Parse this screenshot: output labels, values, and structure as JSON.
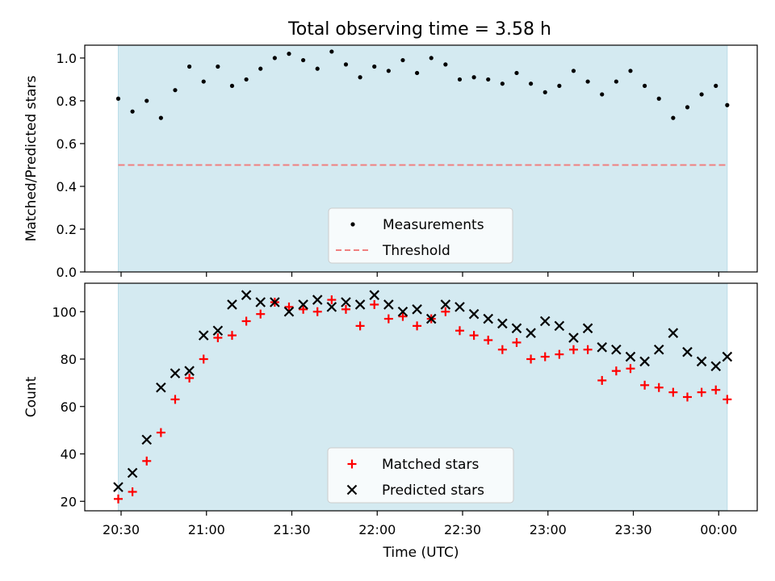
{
  "chart_data": [
    {
      "type": "scatter",
      "title": "Total observing time = 3.58 h",
      "ylabel": "Matched/Predicted stars",
      "xlabel": "",
      "ylim": [
        0,
        1.06
      ],
      "yticks": [
        "0.0",
        "0.2",
        "0.4",
        "0.6",
        "0.8",
        "1.0"
      ],
      "xticks": [
        "20:30",
        "21:00",
        "21:30",
        "22:00",
        "22:30",
        "23:00",
        "23:30",
        "00:00"
      ],
      "shaded_span": [
        "20:29",
        "00:03"
      ],
      "shade_color": "#d4eaf1",
      "legend": {
        "position": "lower center",
        "entries": [
          {
            "label": "Measurements",
            "marker": "dot",
            "color": "#000000"
          },
          {
            "label": "Threshold",
            "marker": "dashed-line",
            "color": "#f08080"
          }
        ]
      },
      "threshold": 0.5,
      "series": [
        {
          "name": "Measurements",
          "x": [
            "20:29",
            "20:34",
            "20:39",
            "20:44",
            "20:49",
            "20:54",
            "20:59",
            "21:04",
            "21:09",
            "21:14",
            "21:19",
            "21:24",
            "21:29",
            "21:34",
            "21:39",
            "21:44",
            "21:49",
            "21:54",
            "21:59",
            "22:04",
            "22:09",
            "22:14",
            "22:19",
            "22:24",
            "22:29",
            "22:34",
            "22:39",
            "22:44",
            "22:49",
            "22:54",
            "22:59",
            "23:04",
            "23:09",
            "23:14",
            "23:19",
            "23:24",
            "23:29",
            "23:34",
            "23:39",
            "23:44",
            "23:49",
            "23:54",
            "23:59",
            "00:03"
          ],
          "y": [
            0.81,
            0.75,
            0.8,
            0.72,
            0.85,
            0.96,
            0.89,
            0.96,
            0.87,
            0.9,
            0.95,
            1.0,
            1.02,
            0.99,
            0.95,
            1.03,
            0.97,
            0.91,
            0.96,
            0.94,
            0.99,
            0.93,
            1.0,
            0.97,
            0.9,
            0.91,
            0.9,
            0.88,
            0.93,
            0.88,
            0.84,
            0.87,
            0.94,
            0.89,
            0.83,
            0.89,
            0.94,
            0.87,
            0.81,
            0.72,
            0.77,
            0.83,
            0.87,
            0.78
          ]
        }
      ]
    },
    {
      "type": "scatter",
      "title": "",
      "ylabel": "Count",
      "xlabel": "Time (UTC)",
      "ylim": [
        16,
        112
      ],
      "yticks": [
        "20",
        "40",
        "60",
        "80",
        "100"
      ],
      "xticks": [
        "20:30",
        "21:00",
        "21:30",
        "22:00",
        "22:30",
        "23:00",
        "23:30",
        "00:00"
      ],
      "shaded_span": [
        "20:29",
        "00:03"
      ],
      "shade_color": "#d4eaf1",
      "legend": {
        "position": "lower center",
        "entries": [
          {
            "label": "Matched stars",
            "marker": "plus",
            "color": "#ff0000"
          },
          {
            "label": "Predicted stars",
            "marker": "x",
            "color": "#000000"
          }
        ]
      },
      "series": [
        {
          "name": "Matched stars",
          "x": [
            "20:29",
            "20:34",
            "20:39",
            "20:44",
            "20:49",
            "20:54",
            "20:59",
            "21:04",
            "21:09",
            "21:14",
            "21:19",
            "21:24",
            "21:29",
            "21:34",
            "21:39",
            "21:44",
            "21:49",
            "21:54",
            "21:59",
            "22:04",
            "22:09",
            "22:14",
            "22:19",
            "22:24",
            "22:29",
            "22:34",
            "22:39",
            "22:44",
            "22:49",
            "22:54",
            "22:59",
            "23:04",
            "23:09",
            "23:14",
            "23:19",
            "23:24",
            "23:29",
            "23:34",
            "23:39",
            "23:44",
            "23:49",
            "23:54",
            "23:59",
            "00:03"
          ],
          "y": [
            21,
            24,
            37,
            49,
            63,
            72,
            80,
            89,
            90,
            96,
            99,
            104,
            102,
            101,
            100,
            105,
            101,
            94,
            103,
            97,
            98,
            94,
            97,
            100,
            92,
            90,
            88,
            84,
            87,
            80,
            81,
            82,
            84,
            84,
            71,
            75,
            76,
            69,
            68,
            66,
            64,
            66,
            67,
            63
          ]
        },
        {
          "name": "Predicted stars",
          "x": [
            "20:29",
            "20:34",
            "20:39",
            "20:44",
            "20:49",
            "20:54",
            "20:59",
            "21:04",
            "21:09",
            "21:14",
            "21:19",
            "21:24",
            "21:29",
            "21:34",
            "21:39",
            "21:44",
            "21:49",
            "21:54",
            "21:59",
            "22:04",
            "22:09",
            "22:14",
            "22:19",
            "22:24",
            "22:29",
            "22:34",
            "22:39",
            "22:44",
            "22:49",
            "22:54",
            "22:59",
            "23:04",
            "23:09",
            "23:14",
            "23:19",
            "23:24",
            "23:29",
            "23:34",
            "23:39",
            "23:44",
            "23:49",
            "23:54",
            "23:59",
            "00:03"
          ],
          "y": [
            26,
            32,
            46,
            68,
            74,
            75,
            90,
            92,
            103,
            107,
            104,
            104,
            100,
            103,
            105,
            102,
            104,
            103,
            107,
            103,
            100,
            101,
            97,
            103,
            102,
            99,
            97,
            95,
            93,
            91,
            96,
            94,
            89,
            93,
            85,
            84,
            81,
            79,
            84,
            91,
            83,
            79,
            77,
            81
          ]
        }
      ]
    }
  ]
}
